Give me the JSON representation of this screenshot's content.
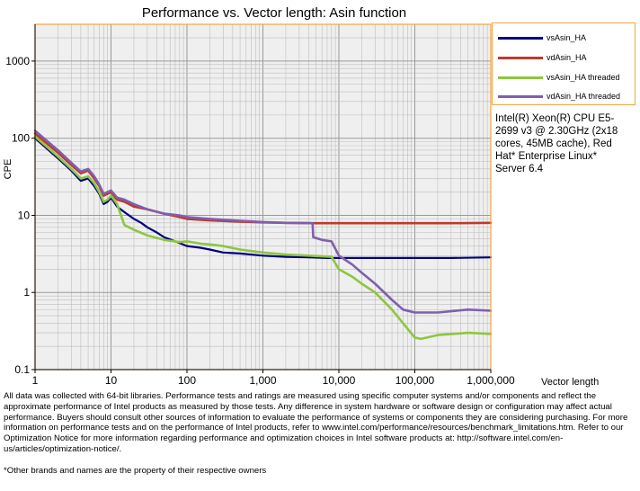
{
  "chart_data": {
    "type": "line",
    "title": "Performance vs. Vector length: Asin function",
    "xlabel": "Vector length",
    "ylabel": "CPE",
    "xscale": "log",
    "yscale": "log",
    "xlim": [
      1,
      1000000
    ],
    "ylim": [
      0.1,
      3000
    ],
    "x_ticks": [
      {
        "value": 1,
        "label": "1"
      },
      {
        "value": 10,
        "label": "10"
      },
      {
        "value": 100,
        "label": "100"
      },
      {
        "value": 1000,
        "label": "1,000"
      },
      {
        "value": 10000,
        "label": "10,000"
      },
      {
        "value": 100000,
        "label": "100,000"
      },
      {
        "value": 1000000,
        "label": "1,000,000"
      }
    ],
    "y_ticks": [
      {
        "value": 0.1,
        "label": "0.1"
      },
      {
        "value": 1,
        "label": "1"
      },
      {
        "value": 10,
        "label": "10"
      },
      {
        "value": 100,
        "label": "100"
      },
      {
        "value": 1000,
        "label": "1000"
      }
    ],
    "grid": true,
    "legend_position": "top-right",
    "series": [
      {
        "name": "vsAsin_HA",
        "color": "#00007f",
        "points": [
          [
            1,
            100
          ],
          [
            2,
            55
          ],
          [
            3,
            38
          ],
          [
            4,
            28
          ],
          [
            5,
            30
          ],
          [
            6,
            24
          ],
          [
            7,
            19
          ],
          [
            8,
            14
          ],
          [
            9,
            15
          ],
          [
            10,
            17
          ],
          [
            12,
            13
          ],
          [
            15,
            11
          ],
          [
            20,
            9
          ],
          [
            25,
            8
          ],
          [
            30,
            7
          ],
          [
            40,
            6
          ],
          [
            50,
            5.2
          ],
          [
            70,
            4.6
          ],
          [
            100,
            4.0
          ],
          [
            150,
            3.8
          ],
          [
            200,
            3.6
          ],
          [
            300,
            3.3
          ],
          [
            500,
            3.2
          ],
          [
            1000,
            3.0
          ],
          [
            2000,
            2.9
          ],
          [
            4000,
            2.85
          ],
          [
            7000,
            2.8
          ],
          [
            10000,
            2.8
          ],
          [
            30000,
            2.8
          ],
          [
            100000,
            2.8
          ],
          [
            300000,
            2.8
          ],
          [
            1000000,
            2.85
          ]
        ]
      },
      {
        "name": "vdAsin_HA",
        "color": "#c0392b",
        "points": [
          [
            1,
            115
          ],
          [
            2,
            65
          ],
          [
            3,
            45
          ],
          [
            4,
            35
          ],
          [
            5,
            38
          ],
          [
            6,
            30
          ],
          [
            7,
            24
          ],
          [
            8,
            18
          ],
          [
            9,
            19
          ],
          [
            10,
            20
          ],
          [
            12,
            16
          ],
          [
            15,
            15
          ],
          [
            20,
            13
          ],
          [
            30,
            12
          ],
          [
            50,
            10.5
          ],
          [
            80,
            9.5
          ],
          [
            100,
            9
          ],
          [
            200,
            8.6
          ],
          [
            500,
            8.3
          ],
          [
            1000,
            8.1
          ],
          [
            2000,
            8.0
          ],
          [
            5000,
            7.9
          ],
          [
            10000,
            7.9
          ],
          [
            30000,
            7.9
          ],
          [
            100000,
            7.9
          ],
          [
            300000,
            7.9
          ],
          [
            1000000,
            8.0
          ]
        ]
      },
      {
        "name": "vsAsin_HA threaded",
        "color": "#8dc63f",
        "points": [
          [
            1,
            105
          ],
          [
            2,
            58
          ],
          [
            3,
            40
          ],
          [
            4,
            30
          ],
          [
            5,
            32
          ],
          [
            6,
            26
          ],
          [
            7,
            20
          ],
          [
            8,
            15
          ],
          [
            9,
            16
          ],
          [
            10,
            18
          ],
          [
            12,
            14
          ],
          [
            15,
            7.5
          ],
          [
            20,
            6.5
          ],
          [
            30,
            5.5
          ],
          [
            50,
            4.8
          ],
          [
            80,
            4.5
          ],
          [
            100,
            4.6
          ],
          [
            150,
            4.3
          ],
          [
            200,
            4.2
          ],
          [
            300,
            4.0
          ],
          [
            500,
            3.6
          ],
          [
            1000,
            3.3
          ],
          [
            2000,
            3.1
          ],
          [
            4000,
            3.0
          ],
          [
            8000,
            2.9
          ],
          [
            10000,
            2.0
          ],
          [
            15000,
            1.6
          ],
          [
            20000,
            1.3
          ],
          [
            30000,
            1.0
          ],
          [
            50000,
            0.6
          ],
          [
            70000,
            0.4
          ],
          [
            100000,
            0.26
          ],
          [
            120000,
            0.25
          ],
          [
            200000,
            0.28
          ],
          [
            500000,
            0.3
          ],
          [
            1000000,
            0.29
          ]
        ]
      },
      {
        "name": "vdAsin_HA threaded",
        "color": "#7f5fae",
        "points": [
          [
            1,
            125
          ],
          [
            2,
            70
          ],
          [
            3,
            48
          ],
          [
            4,
            37
          ],
          [
            5,
            40
          ],
          [
            6,
            32
          ],
          [
            7,
            25
          ],
          [
            8,
            19
          ],
          [
            9,
            20
          ],
          [
            10,
            21
          ],
          [
            12,
            17
          ],
          [
            15,
            16
          ],
          [
            20,
            14
          ],
          [
            30,
            12
          ],
          [
            50,
            10.5
          ],
          [
            80,
            10
          ],
          [
            100,
            9.5
          ],
          [
            200,
            9
          ],
          [
            500,
            8.5
          ],
          [
            1000,
            8.2
          ],
          [
            2000,
            8.0
          ],
          [
            4500,
            7.9
          ],
          [
            4600,
            5.2
          ],
          [
            6000,
            4.8
          ],
          [
            8000,
            4.6
          ],
          [
            10000,
            3.0
          ],
          [
            15000,
            2.3
          ],
          [
            20000,
            1.8
          ],
          [
            30000,
            1.3
          ],
          [
            50000,
            0.8
          ],
          [
            70000,
            0.6
          ],
          [
            100000,
            0.55
          ],
          [
            200000,
            0.55
          ],
          [
            500000,
            0.6
          ],
          [
            1000000,
            0.58
          ]
        ]
      }
    ]
  },
  "cpu_note": "Intel(R) Xeon(R) CPU E5-2699 v3 @ 2.30GHz (2x18 cores, 45MB cache), Red Hat* Enterprise Linux* Server 6.4",
  "disclaimer": "All data was collected with 64-bit libraries. Performance tests and ratings are measured using specific computer systems and/or components and reflect the approximate performance of Intel products as measured by those tests. Any difference in system hardware or software design or configuration may affect actual performance. Buyers should consult other sources of information to evaluate the performance of systems or components they are considering purchasing. For more information on performance tests and on the performance of Intel products, refer to www.intel.com/performance/resources/benchmark_limitations.htm. Refer to our Optimization Notice for more information regarding performance and optimization choices in Intel software products at: http://software.intel.com/en-us/articles/optimization-notice/.",
  "footnote": "*Other brands and names are the property of their respective owners"
}
